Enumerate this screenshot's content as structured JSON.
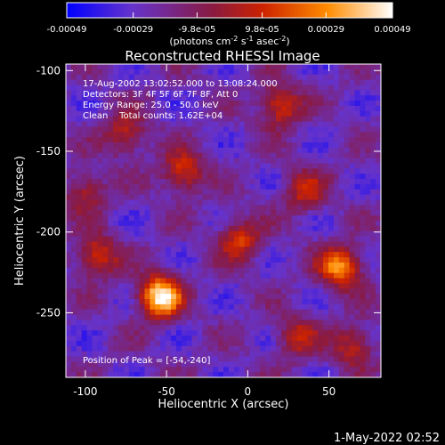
{
  "chart_data": {
    "type": "heatmap",
    "title": "Reconstructed RHESSI Image",
    "xlabel": "Heliocentric X (arcsec)",
    "ylabel": "Heliocentric Y (arcsec)",
    "xlim": [
      -112,
      82
    ],
    "ylim": [
      -290,
      -96
    ],
    "x_ticks": [
      -100,
      -50,
      0,
      50
    ],
    "x_tick_labels": [
      "-100",
      "-50",
      "0",
      "50"
    ],
    "y_ticks": [
      -100,
      -150,
      -200,
      -250
    ],
    "y_tick_labels": [
      "-100",
      "-150",
      "-200",
      "-250"
    ],
    "colorbar": {
      "range": [
        -0.00049,
        0.00049
      ],
      "tick_values": [
        -0.00049,
        -0.00029,
        -9.8e-05,
        9.8e-05,
        0.00029,
        0.00049
      ],
      "tick_labels": [
        "-0.00049",
        "-0.00029",
        "-9.8e-05",
        "9.8e-05",
        "0.00029",
        "0.00049"
      ],
      "unit_label": "(photons cm-2 s-1 asec-2)",
      "colors": [
        "#0000ff",
        "#6633cc",
        "#8a1a40",
        "#cc2200",
        "#ff8c00",
        "#ffffff"
      ]
    },
    "annotations": [
      "17-Aug-2002 13:02:52.000 to 13:08:24.000",
      "Detectors: 3F 4F 5F 6F 7F 8F, Att 0",
      "Energy Range: 25.0 - 50.0 keV",
      "Clean    Total counts: 1.62E+04"
    ],
    "peak_label": "Position of Peak = [-54,-240]",
    "peak": [
      -54,
      -240
    ],
    "bright_sources": [
      {
        "x": -54,
        "y": -240,
        "intensity": 1.0
      },
      {
        "x": 57,
        "y": -222,
        "intensity": 0.75
      },
      {
        "x": -93,
        "y": -215,
        "intensity": 0.55
      },
      {
        "x": -40,
        "y": -163,
        "intensity": 0.55
      },
      {
        "x": 20,
        "y": -122,
        "intensity": 0.55
      },
      {
        "x": -75,
        "y": -140,
        "intensity": 0.45
      },
      {
        "x": -5,
        "y": -205,
        "intensity": 0.5
      },
      {
        "x": 65,
        "y": -270,
        "intensity": 0.45
      },
      {
        "x": 30,
        "y": -265,
        "intensity": 0.4
      },
      {
        "x": 35,
        "y": -175,
        "intensity": 0.4
      },
      {
        "x": -100,
        "y": -175,
        "intensity": 0.4
      }
    ]
  },
  "footer_date": "1-May-2022 02:52"
}
